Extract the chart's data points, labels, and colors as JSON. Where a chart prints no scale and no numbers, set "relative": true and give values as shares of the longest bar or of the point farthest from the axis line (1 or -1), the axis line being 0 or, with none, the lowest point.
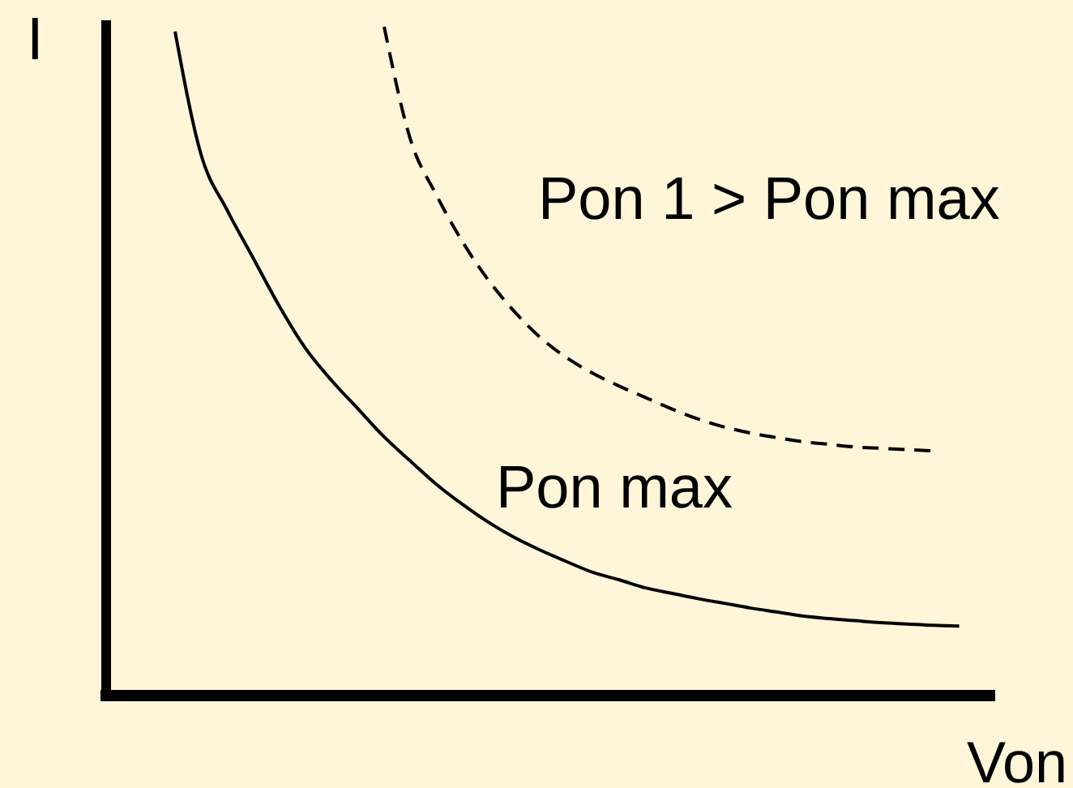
{
  "chart_data": {
    "type": "line",
    "relative": true,
    "xlabel": "Von",
    "ylabel": "I",
    "categories": [
      null,
      null,
      null,
      null,
      null,
      null,
      null,
      null,
      null,
      null,
      null,
      null,
      null,
      null,
      null,
      null,
      null,
      null,
      null,
      null,
      null,
      null,
      null,
      null,
      null,
      null,
      null,
      null,
      null,
      null,
      null
    ],
    "series": [
      {
        "name": "Pon max",
        "color": "#000000",
        "line_style": "solid",
        "values": [
          0.993,
          0.808,
          0.725,
          0.653,
          0.581,
          0.518,
          0.47,
          0.428,
          0.386,
          0.35,
          0.315,
          0.285,
          0.258,
          0.235,
          0.216,
          0.199,
          0.183,
          0.172,
          0.16,
          0.152,
          0.144,
          0.137,
          0.13,
          0.124,
          0.118,
          0.114,
          0.111,
          0.108,
          0.106,
          0.104,
          0.103
        ]
      },
      {
        "name": "Pon 1 > Pon max",
        "color": "#000000",
        "line_style": "dashed",
        "values": [
          null,
          null,
          null,
          null,
          null,
          null,
          null,
          null,
          1,
          0.832,
          0.748,
          0.678,
          0.62,
          0.573,
          0.534,
          0.504,
          0.481,
          0.462,
          0.445,
          0.428,
          0.413,
          0.401,
          0.392,
          0.385,
          0.379,
          0.375,
          0.371,
          0.369,
          0.367,
          0.365,
          null
        ]
      }
    ]
  }
}
